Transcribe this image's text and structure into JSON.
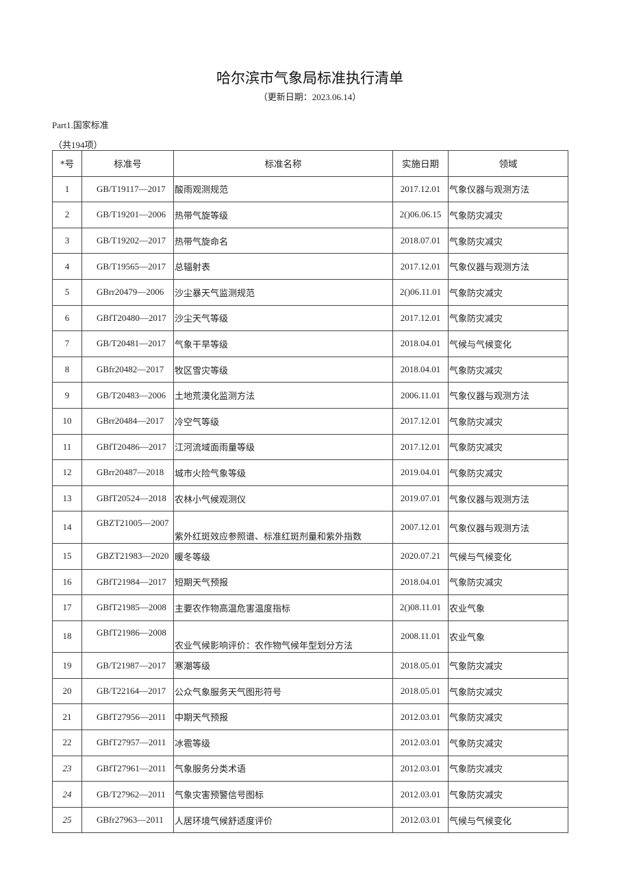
{
  "title": "哈尔滨市气象局标准执行清单",
  "subtitle": "（更新日期：2023.06.14）",
  "part_label": "Part1.国家标准",
  "count_label": "（共194项）",
  "table": {
    "headers": [
      "*号",
      "标准号",
      "标准名称",
      "实施日期",
      "领域"
    ],
    "rows": [
      {
        "no": "1",
        "code": "GB/T19117—2017",
        "name": "酸雨观测规范",
        "date": "2017.12.01",
        "field": "气象仪器与观测方法"
      },
      {
        "no": "2",
        "code": "GB/T19201—2006",
        "name": "热带气旋等级",
        "date": "2()06.06.15",
        "field": "气象防灾减灾"
      },
      {
        "no": "3",
        "code": "GB/T19202—2017",
        "name": "热带气旋命名",
        "date": "2018.07.01",
        "field": "气象防灾减灾"
      },
      {
        "no": "4",
        "code": "GB/T19565—2017",
        "name": "总辐射表",
        "date": "2017.12.01",
        "field": "气象仪器与观测方法"
      },
      {
        "no": "5",
        "code": "GBrr20479—2006",
        "name": "沙尘暴天气监测规范",
        "date": "2()06.11.01",
        "field": "气象防灾减灾"
      },
      {
        "no": "6",
        "code": "GBfT20480—2017",
        "name": "沙尘天气等级",
        "date": "2017.12.01",
        "field": "气象防灾减灾"
      },
      {
        "no": "7",
        "code": "GB/T20481—2017",
        "name": "气象干旱等级",
        "date": "2018.04.01",
        "field": "气候与气候变化"
      },
      {
        "no": "8",
        "code": "GBfr20482—2017",
        "name": "牧区雪灾等级",
        "date": "2018.04.01",
        "field": "气象防灾减灾"
      },
      {
        "no": "9",
        "code": "GB/T20483—2006",
        "name": "土地荒漠化监测方法",
        "date": "2006.11.01",
        "field": "气象仪器与观测方法"
      },
      {
        "no": "10",
        "code": "GBrr20484—2017",
        "name": "冷空气等级",
        "date": "2017.12.01",
        "field": "气象防灾减灾"
      },
      {
        "no": "11",
        "code": "GBfT20486—2017",
        "name": "江河流域面雨量等级",
        "date": "2017.12.01",
        "field": "气象防灾减灾"
      },
      {
        "no": "12",
        "code": "GBrr20487—2018",
        "name": "城市火险气象等级",
        "date": "2019.04.01",
        "field": "气象防灾减灾"
      },
      {
        "no": "13",
        "code": "GBfT20524—2018",
        "name": "农林小气候观测仪",
        "date": "2019.07.01",
        "field": "气象仪器与观测方法"
      },
      {
        "no": "14",
        "code": "GBZT21005—2007",
        "name": "紫外红斑效应参照谱、标准红斑剂量和紫外指数",
        "date": "2007.12.01",
        "field": "气象仪器与观测方法"
      },
      {
        "no": "15",
        "code": "GBZT21983—2020",
        "name": "暖冬等级",
        "date": "2020.07.21",
        "field": "气候与气候变化"
      },
      {
        "no": "16",
        "code": "GBfT21984—2017",
        "name": "短期天气预报",
        "date": "2018.04.01",
        "field": "气象防灾减灾"
      },
      {
        "no": "17",
        "code": "GBfT21985—2008",
        "name": "主要农作物高温危害温度指标",
        "date": "2()08.11.01",
        "field": "农业气象"
      },
      {
        "no": "18",
        "code": "GBfT21986—2008",
        "name": "农业气候影响评价：农作物气候年型划分方法",
        "date": "2008.11.01",
        "field": "农业气象"
      },
      {
        "no": "19",
        "code": "GB/T21987—2017",
        "name": "寒潮等级",
        "date": "2018.05.01",
        "field": "气象防灾减灾"
      },
      {
        "no": "20",
        "code": "GB/T22164—2017",
        "name": "公众气象服务天气图形符号",
        "date": "2018.05.01",
        "field": "气象防灾减灾"
      },
      {
        "no": "21",
        "code": "GBfT27956—2011",
        "name": "中期天气预报",
        "date": "2012.03.01",
        "field": "气象防灾减灾"
      },
      {
        "no": "22",
        "code": "GBfT27957—2011",
        "name": "冰雹等级",
        "date": "2012.03.01",
        "field": "气象防灾减灾"
      },
      {
        "no": "23",
        "code": "GBfT27961—2011",
        "name": "气象服务分类术语",
        "date": "2012.03.01",
        "field": "气象防灾减灾"
      },
      {
        "no": "24",
        "code": "GB/T27962—2011",
        "name": "气象灾害预警信号图标",
        "date": "2012.03.01",
        "field": "气象防灾减灾"
      },
      {
        "no": "25",
        "code": "GBfr27963—2011",
        "name": "人居环境气候舒适度评价",
        "date": "2012.03.01",
        "field": "气候与气候变化"
      }
    ]
  }
}
